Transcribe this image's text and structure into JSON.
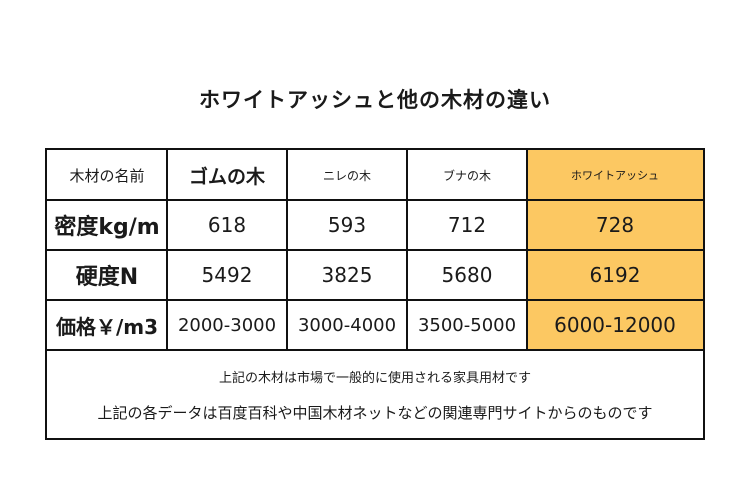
{
  "title": "ホワイトアッシュと他の木材の違い",
  "table": {
    "headers": [
      "木材の名前",
      "ゴムの木",
      "ニレの木",
      "ブナの木",
      "ホワイトアッシュ"
    ],
    "rows": [
      {
        "label": "密度kg/m",
        "values": [
          "618",
          "593",
          "712",
          "728"
        ]
      },
      {
        "label": "硬度N",
        "values": [
          "5492",
          "3825",
          "5680",
          "6192"
        ]
      },
      {
        "label": "価格￥/m3",
        "values": [
          "2000-3000",
          "3000-4000",
          "3500-5000",
          "6000-12000"
        ]
      }
    ]
  },
  "notes": [
    "上記の木材は市場で一般的に使用される家具用材です",
    "上記の各データは百度百科や中国木材ネットなどの関連専門サイトからのものです"
  ],
  "colors": {
    "highlight": "#fcc862",
    "border": "#111111"
  }
}
